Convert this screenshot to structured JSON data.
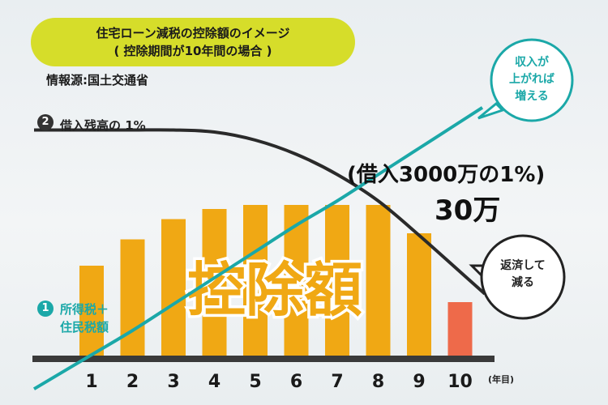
{
  "header": {
    "title_line1": "住宅ローン減税の控除額のイメージ",
    "title_line2": "( 控除期間が10年間の場合 )",
    "source": "情報源:国土交通省"
  },
  "labels": {
    "series2_number": "2",
    "series2_label": "借入残高の 1%",
    "series1_number": "1",
    "series1_label_line1": "所得税＋",
    "series1_label_line2": "住民税額",
    "center_label": "控除額",
    "annotation_line1": "(借入3000万の1%)",
    "annotation_line2": "30万",
    "bubble_income_line1": "収入が",
    "bubble_income_line2": "上がれば",
    "bubble_income_line3": "増える",
    "bubble_repay_line1": "返済して",
    "bubble_repay_line2": "減る",
    "x_unit": "(年目)"
  },
  "colors": {
    "bar": "#f0a814",
    "bar_last": "#ee6a4a",
    "income_line": "#1ba8a8",
    "balance_line": "#2a2a2a",
    "title_bg": "#d6dd2a",
    "center_label": "#f0a814"
  },
  "chart_data": {
    "type": "bar",
    "categories": [
      "1",
      "2",
      "3",
      "4",
      "5",
      "6",
      "7",
      "8",
      "9",
      "10"
    ],
    "values": [
      4.6,
      5.9,
      6.9,
      7.4,
      7.6,
      7.6,
      7.6,
      7.6,
      6.2,
      2.8
    ],
    "ylim": [
      0,
      12
    ],
    "lines": [
      {
        "values": [
          0.2,
          1.4,
          2.7,
          4.0,
          5.3,
          6.6,
          7.8,
          9.1,
          10.4,
          11.7
        ]
      },
      {
        "values": [
          11.3,
          11.3,
          11.3,
          11.2,
          10.8,
          10.1,
          9.1,
          7.8,
          6.1,
          4.3
        ]
      }
    ]
  }
}
